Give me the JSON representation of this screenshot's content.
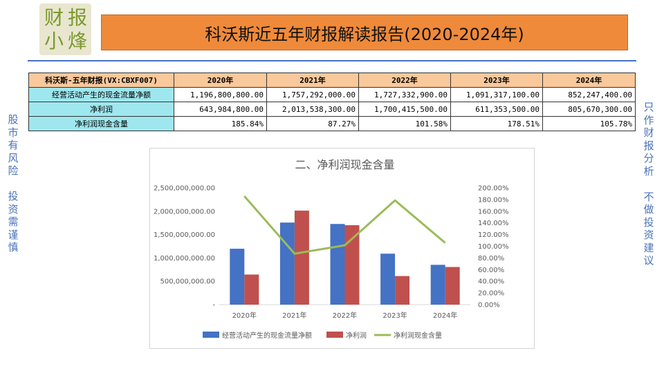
{
  "logo": {
    "chars": [
      "财",
      "报",
      "小",
      "烽"
    ]
  },
  "title": "科沃斯近五年财报解读报告(2020-2024年)",
  "side_left": [
    "股",
    "市",
    "有",
    "风",
    "险",
    "",
    "投",
    "资",
    "需",
    "谨",
    "慎"
  ],
  "side_right": [
    "只",
    "作",
    "财",
    "报",
    "分",
    "析",
    "",
    "不",
    "做",
    "投",
    "资",
    "建",
    "议"
  ],
  "table": {
    "header": [
      "科沃斯-五年财报(VX:CBXF007)",
      "2020年",
      "2021年",
      "2022年",
      "2023年",
      "2024年"
    ],
    "rows": [
      {
        "label": "经营活动产生的现金流量净额",
        "cells": [
          "1,196,800,800.00",
          "1,757,292,000.00",
          "1,727,332,900.00",
          "1,091,317,100.00",
          "852,247,400.00"
        ]
      },
      {
        "label": "净利润",
        "cells": [
          "643,984,800.00",
          "2,013,538,300.00",
          "1,700,415,500.00",
          "611,353,500.00",
          "805,670,300.00"
        ]
      },
      {
        "label": "净利润现金含量",
        "cells": [
          "185.84%",
          "87.27%",
          "101.58%",
          "178.51%",
          "105.78%"
        ]
      }
    ]
  },
  "chart_data": {
    "type": "bar",
    "title": "二、净利润现金含量",
    "categories": [
      "2020年",
      "2021年",
      "2022年",
      "2023年",
      "2024年"
    ],
    "series": [
      {
        "name": "经营活动产生的现金流量净额",
        "type": "bar",
        "axis": "left",
        "color": "#4472c4",
        "values": [
          1196800800,
          1757292000,
          1727332900,
          1091317100,
          852247400
        ]
      },
      {
        "name": "净利润",
        "type": "bar",
        "axis": "left",
        "color": "#c0504d",
        "values": [
          643984800,
          2013538300,
          1700415500,
          611353500,
          805670300
        ]
      },
      {
        "name": "净利润现金含量",
        "type": "line",
        "axis": "right",
        "color": "#9bbb59",
        "values": [
          185.84,
          87.27,
          101.58,
          178.51,
          105.78
        ]
      }
    ],
    "left_ticks": [
      "-",
      "500,000,000.00",
      "1,000,000,000.00",
      "1,500,000,000.00",
      "2,000,000,000.00",
      "2,500,000,000.00"
    ],
    "right_ticks": [
      "0.00%",
      "20.00%",
      "40.00%",
      "60.00%",
      "80.00%",
      "100.00%",
      "120.00%",
      "140.00%",
      "160.00%",
      "180.00%",
      "200.00%"
    ],
    "ylim_left": [
      0,
      2500000000
    ],
    "ylim_right": [
      0,
      200
    ],
    "legend_position": "bottom"
  }
}
